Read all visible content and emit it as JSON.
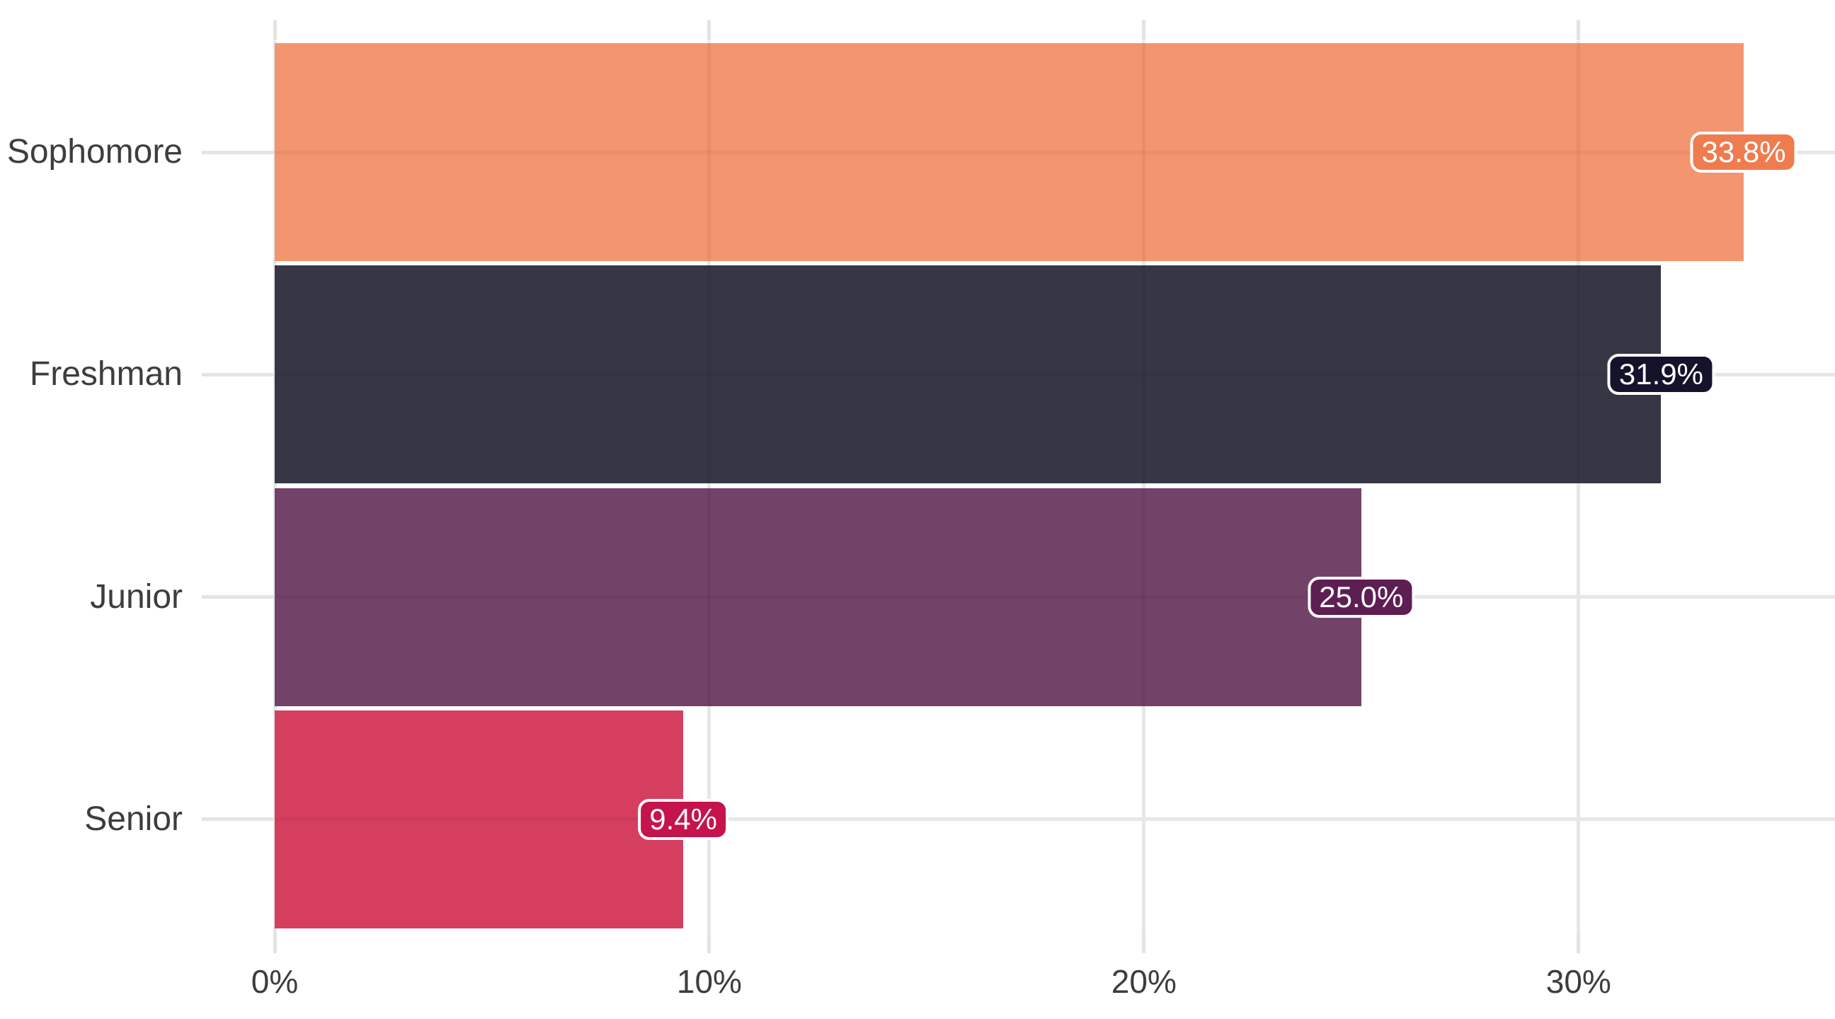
{
  "chart_data": {
    "type": "bar",
    "orientation": "horizontal",
    "title": "",
    "xlabel": "",
    "ylabel": "",
    "categories": [
      "Sophomore",
      "Freshman",
      "Junior",
      "Senior"
    ],
    "values": [
      33.8,
      31.9,
      25.0,
      9.4
    ],
    "value_labels": [
      "33.8%",
      "31.9%",
      "25.0%",
      "9.4%"
    ],
    "bar_colors": [
      "#F3956F",
      "#373645",
      "#734268",
      "#D63E60"
    ],
    "value_badge_colors": [
      "#EE7C4F",
      "#15132B",
      "#5D1E52",
      "#C5134C"
    ],
    "x_ticks": [
      0,
      10,
      20,
      30
    ],
    "x_tick_labels": [
      "0%",
      "10%",
      "20%",
      "30%"
    ],
    "xlim": [
      0,
      35.9
    ],
    "grid": "major vertical lines at x ticks and horizontal line at each category center; no minor gridlines",
    "legend": "none",
    "bars_sorted": "descending top to bottom"
  },
  "colors": {
    "background": "#FFFFFF",
    "gridline": "#E7E7E7",
    "tick": "#E4E4E4",
    "axis_text": "#3D3D3D",
    "badge_text": "#FFFFFF",
    "badge_border": "#FFFFFF"
  }
}
